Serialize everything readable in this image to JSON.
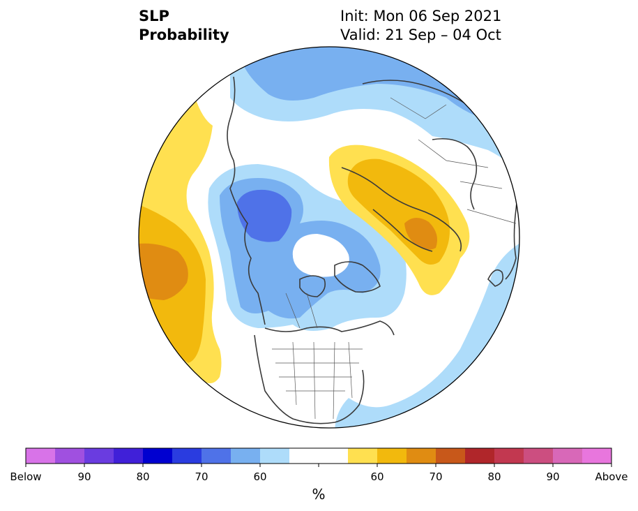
{
  "header": {
    "variable": "SLP",
    "field": "Probability",
    "init": "Init: Mon 06 Sep 2021",
    "valid": "Valid: 21 Sep – 04 Oct"
  },
  "map": {
    "projection": "north-polar-stereographic",
    "region_labels": []
  },
  "colorbar": {
    "colors": [
      "#d873e8",
      "#a050e0",
      "#6a3ce0",
      "#4020d8",
      "#0000d0",
      "#2a3ce0",
      "#4f72e8",
      "#78b0f0",
      "#aedcfa",
      "#ffffff",
      "#ffffff",
      "#ffe050",
      "#f2b90d",
      "#e08c12",
      "#c8581a",
      "#b0262a",
      "#c23850",
      "#cc4e80",
      "#d868b8",
      "#e876dd"
    ],
    "tick_labels": [
      "Below",
      "90",
      "80",
      "70",
      "60",
      "60",
      "70",
      "80",
      "90",
      "Above"
    ],
    "units": "%"
  },
  "legend_colors": {
    "below_60": "#aedcfa",
    "below_70": "#78b0f0",
    "below_80": "#4f72e8",
    "above_60": "#ffe050",
    "above_70": "#f2b90d",
    "above_80": "#e08c12"
  }
}
